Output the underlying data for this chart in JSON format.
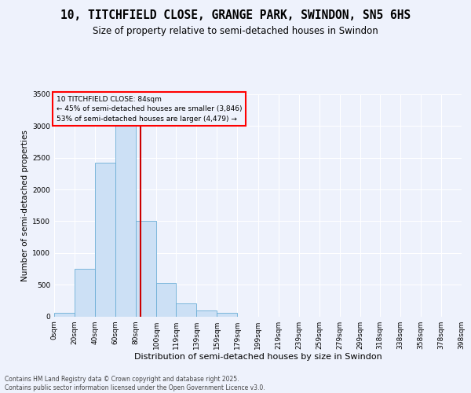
{
  "title_line1": "10, TITCHFIELD CLOSE, GRANGE PARK, SWINDON, SN5 6HS",
  "title_line2": "Size of property relative to semi-detached houses in Swindon",
  "xlabel": "Distribution of semi-detached houses by size in Swindon",
  "ylabel": "Number of semi-detached properties",
  "annotation_title": "10 TITCHFIELD CLOSE: 84sqm",
  "annotation_line2": "← 45% of semi-detached houses are smaller (3,846)",
  "annotation_line3": "53% of semi-detached houses are larger (4,479) →",
  "footer_line1": "Contains HM Land Registry data © Crown copyright and database right 2025.",
  "footer_line2": "Contains public sector information licensed under the Open Government Licence v3.0.",
  "bin_edges": [
    0,
    20,
    40,
    60,
    80,
    100,
    119,
    139,
    159,
    179,
    199,
    219,
    239,
    259,
    279,
    299,
    318,
    338,
    358,
    378,
    398
  ],
  "bar_heights": [
    50,
    750,
    2420,
    3250,
    1500,
    530,
    200,
    90,
    55,
    0,
    0,
    0,
    0,
    0,
    0,
    0,
    0,
    0,
    0,
    0
  ],
  "bar_color": "#cce0f5",
  "bar_edgecolor": "#6baed6",
  "vline_color": "#cc0000",
  "vline_x": 84,
  "ylim": [
    0,
    3500
  ],
  "yticks": [
    0,
    500,
    1000,
    1500,
    2000,
    2500,
    3000,
    3500
  ],
  "xtick_labels": [
    "0sqm",
    "20sqm",
    "40sqm",
    "60sqm",
    "80sqm",
    "100sqm",
    "119sqm",
    "139sqm",
    "159sqm",
    "179sqm",
    "199sqm",
    "219sqm",
    "239sqm",
    "259sqm",
    "279sqm",
    "299sqm",
    "318sqm",
    "338sqm",
    "358sqm",
    "378sqm",
    "398sqm"
  ],
  "bg_color": "#eef2fc",
  "grid_color": "#ffffff",
  "title_fontsize": 10.5,
  "subtitle_fontsize": 8.5,
  "ylabel_fontsize": 7.5,
  "xlabel_fontsize": 8,
  "tick_fontsize": 6.5,
  "annotation_fontsize": 6.5,
  "footer_fontsize": 5.5
}
